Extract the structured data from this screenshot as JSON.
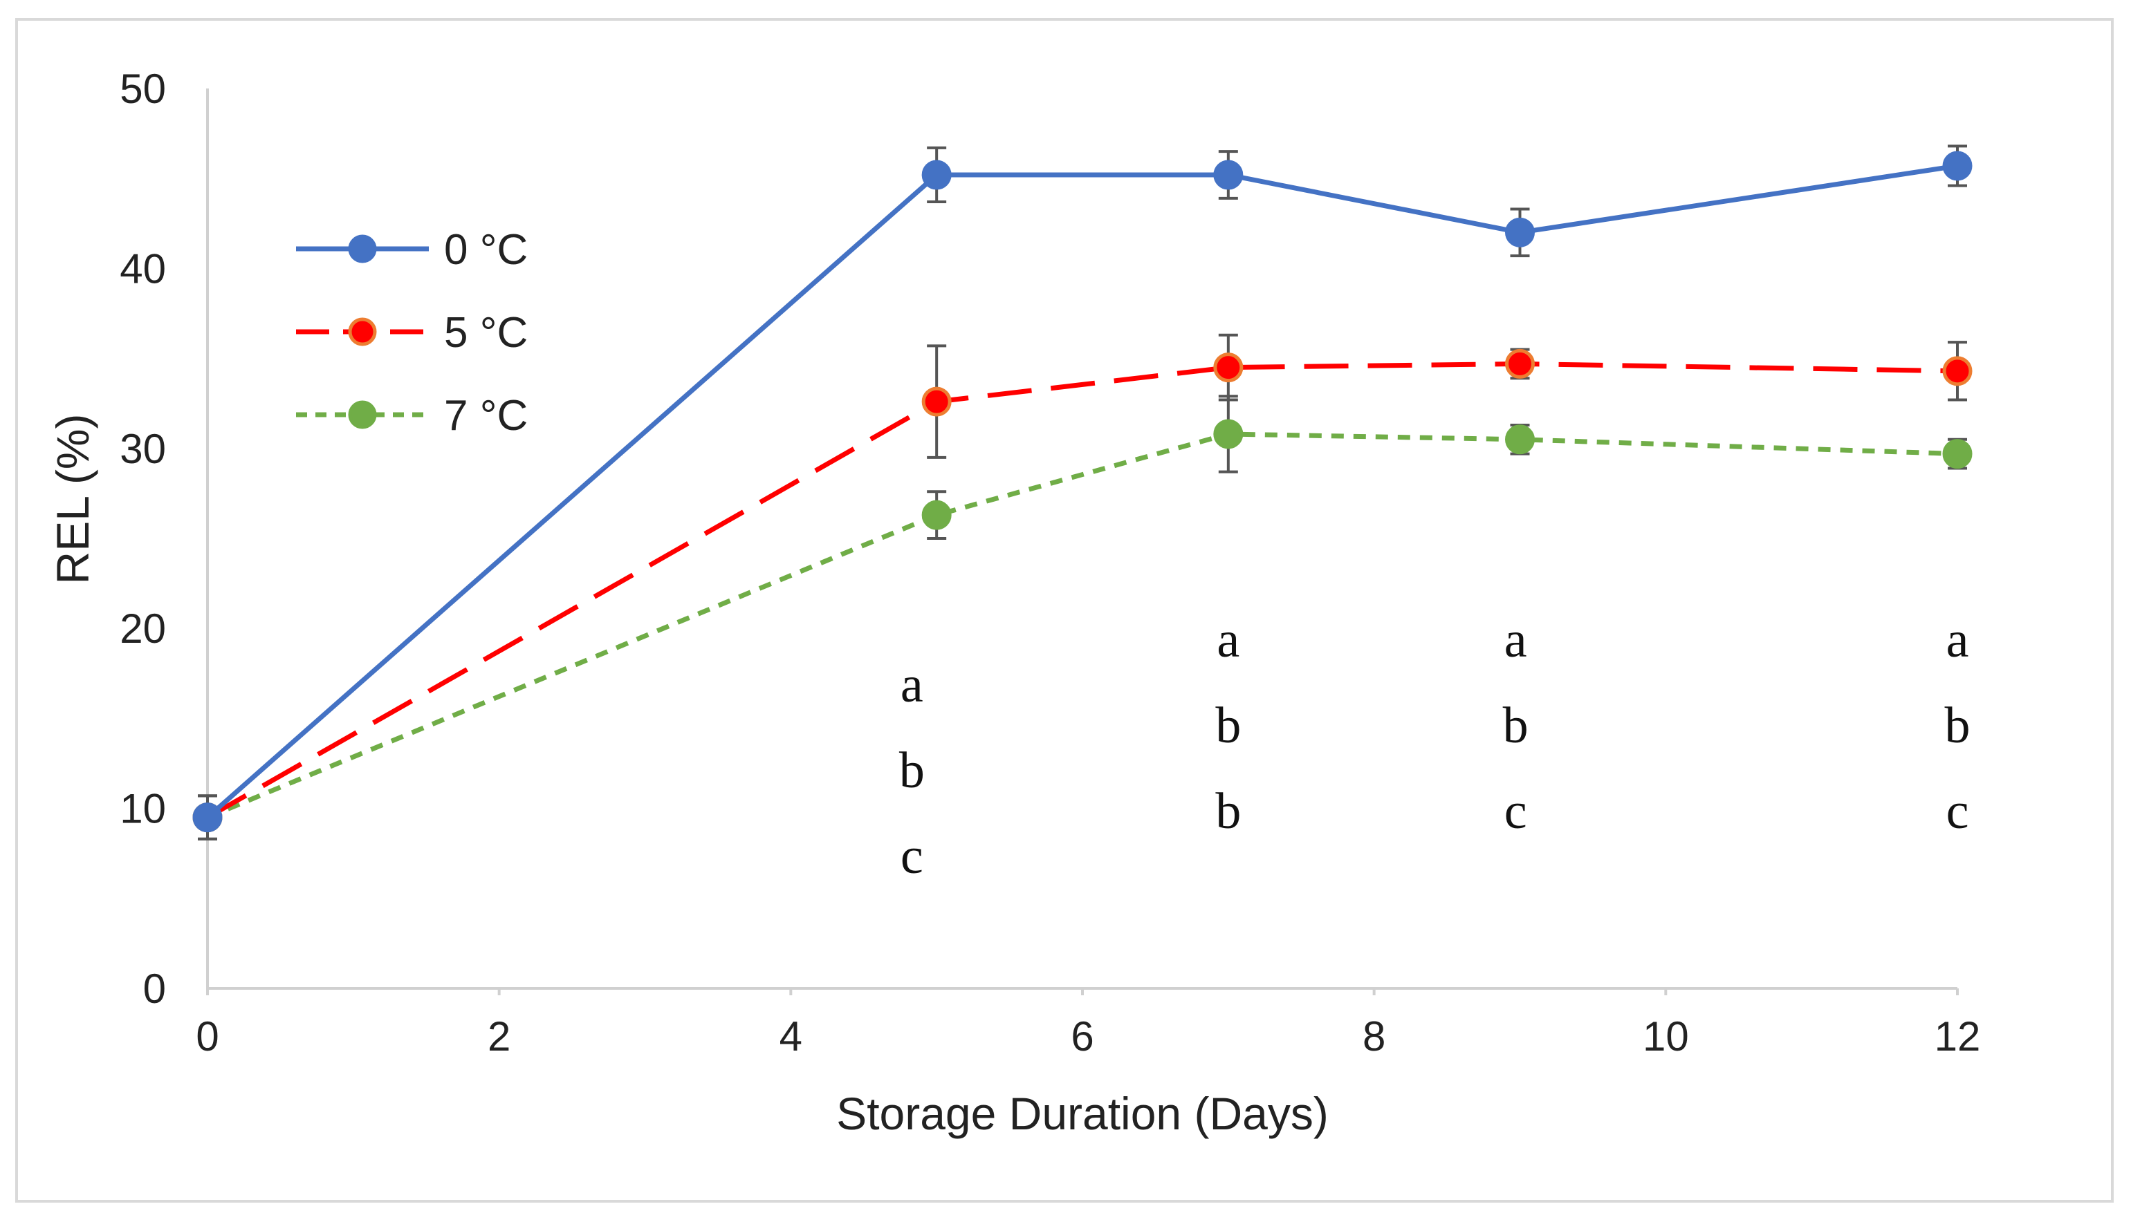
{
  "chart_data": {
    "type": "line",
    "title": "",
    "xlabel": "Storage Duration (Days)",
    "ylabel": "REL (%)",
    "xlim": [
      0,
      12
    ],
    "ylim": [
      0,
      50
    ],
    "xticks": [
      0,
      2,
      4,
      6,
      8,
      10,
      12
    ],
    "yticks": [
      0,
      10,
      20,
      30,
      40,
      50
    ],
    "grid": false,
    "legend_position": "top-left",
    "x": [
      0,
      5,
      7,
      9,
      12
    ],
    "series": [
      {
        "name": "0 °C",
        "color": "#4472C4",
        "marker_fill": "#4472C4",
        "marker_edge": "#4472C4",
        "line_style": "solid",
        "values": [
          9.5,
          45.2,
          45.2,
          42.0,
          45.7
        ],
        "errors": [
          1.2,
          1.5,
          1.3,
          1.3,
          1.1
        ]
      },
      {
        "name": "5 °C",
        "color": "#FF0000",
        "marker_fill": "#FF0000",
        "marker_edge": "#ED7D31",
        "line_style": "long-dash",
        "values": [
          9.5,
          32.6,
          34.5,
          34.7,
          34.3
        ],
        "errors": [
          1.2,
          3.1,
          1.8,
          0.8,
          1.6
        ]
      },
      {
        "name": "7 °C",
        "color": "#70AD47",
        "marker_fill": "#70AD47",
        "marker_edge": "#70AD47",
        "line_style": "short-dash",
        "values": [
          9.5,
          26.3,
          30.8,
          30.5,
          29.7
        ],
        "errors": [
          1.2,
          1.3,
          2.1,
          0.8,
          0.8
        ]
      }
    ],
    "annotations": [
      {
        "x": 4.83,
        "letters": [
          "a",
          "b",
          "c"
        ]
      },
      {
        "x": 7,
        "letters": [
          "a",
          "b",
          "b"
        ]
      },
      {
        "x": 8.97,
        "letters": [
          "a",
          "b",
          "c"
        ]
      },
      {
        "x": 12,
        "letters": [
          "a",
          "b",
          "c"
        ]
      }
    ]
  }
}
